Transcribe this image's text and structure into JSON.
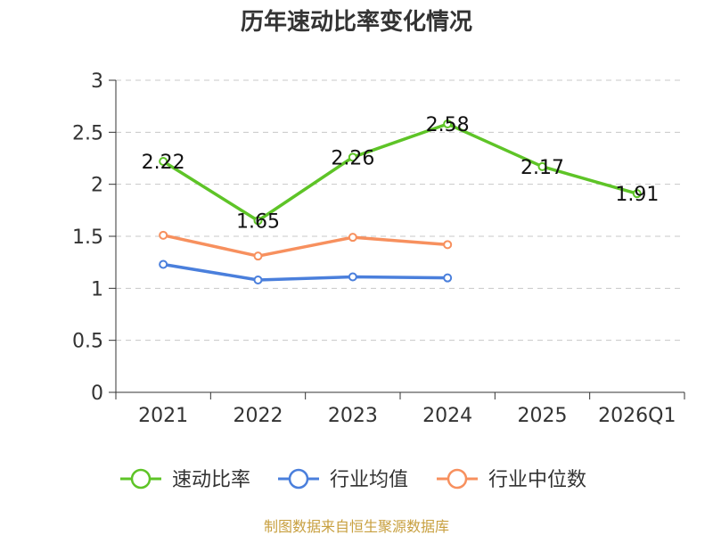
{
  "chart_data": {
    "type": "line",
    "title": "历年速动比率变化情况",
    "categories": [
      "2021",
      "2022",
      "2023",
      "2024",
      "2025",
      "2026Q1"
    ],
    "ylim": [
      0,
      3
    ],
    "yticks": [
      "0",
      "0.5",
      "1",
      "1.5",
      "2",
      "2.5",
      "3"
    ],
    "grid": true,
    "legend_position": "bottom",
    "series": [
      {
        "name": "速动比率",
        "color": "#5ec427",
        "values": [
          2.22,
          1.65,
          2.26,
          2.58,
          2.17,
          1.91
        ],
        "labels": [
          "2.22",
          "1.65",
          "2.26",
          "2.58",
          "2.17",
          "1.91"
        ]
      },
      {
        "name": "行业均值",
        "color": "#4a7fdc",
        "values": [
          1.23,
          1.08,
          1.11,
          1.1,
          null,
          null
        ]
      },
      {
        "name": "行业中位数",
        "color": "#f7905e",
        "values": [
          1.51,
          1.31,
          1.49,
          1.42,
          null,
          null
        ]
      }
    ],
    "source": "制图数据来自恒生聚源数据库"
  }
}
